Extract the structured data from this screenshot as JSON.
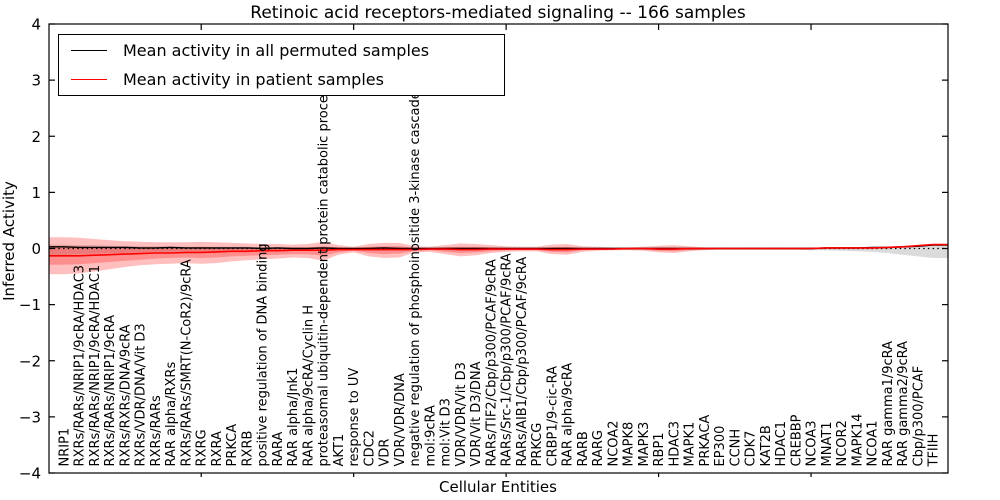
{
  "figure": {
    "title": "Retinoic acid receptors-mediated signaling -- 166 samples",
    "xlabel": "Cellular Entities",
    "ylabel": "Inferred Activity"
  },
  "legend": {
    "items": [
      {
        "label": "Mean activity in all permuted samples",
        "color": "#000000"
      },
      {
        "label": "Mean activity in patient samples",
        "color": "#ff0000"
      }
    ]
  },
  "chart_data": {
    "type": "line",
    "title": "Retinoic acid receptors-mediated signaling -- 166 samples",
    "xlabel": "Cellular Entities",
    "ylabel": "Inferred Activity",
    "ylim": [
      -4,
      4
    ],
    "yticks": [
      4,
      3,
      2,
      1,
      0,
      -1,
      -2,
      -3,
      -4
    ],
    "xtick_every": 10,
    "grid": false,
    "zero_line_style": "dotted",
    "legend_position": "upper left",
    "categories": [
      "NRIP1",
      "RXRs/RARs/NRIP1/9cRA/HDAC3",
      "RXRs/RARs/NRIP1/9cRA/HDAC1",
      "RXRs/RARs/NRIP1/9cRA",
      "RXRs/RXRs/DNA/9cRA",
      "RXRs/VDR/DNA/Vit D3",
      "RXRs/RARs",
      "RAR alpha/RXRs",
      "RXRs/RARs/SMRT(N-CoR2)/9cRA",
      "RXRG",
      "RXRA",
      "PRKCA",
      "RXRB",
      "positive regulation of DNA binding",
      "RARA",
      "RAR alpha/Jnk1",
      "RAR alpha/9cRA/Cyclin H",
      "proteasomal ubiquitin-dependent protein catabolic process",
      "AKT1",
      "response to UV",
      "CDC2",
      "VDR",
      "VDR/VDR/DNA",
      "negative regulation of phosphoinositide 3-kinase cascade",
      "mol:9cRA",
      "mol:Vit D3",
      "VDR/VDR/Vit D3",
      "VDR/Vit D3/DNA",
      "RARs/TIF2/Cbp/p300/PCAF/9cRA",
      "RARs/Src-1/Cbp/p300/PCAF/9cRA",
      "RARs/AIB1/Cbp/p300/PCAF/9cRA",
      "PRKCG",
      "CRBP1/9-cic-RA",
      "RAR alpha/9cRA",
      "RARB",
      "RARG",
      "NCOA2",
      "MAPK8",
      "MAPK3",
      "RBP1",
      "HDAC3",
      "MAPK1",
      "PRKACA",
      "EP300",
      "CCNH",
      "CDK7",
      "KAT2B",
      "HDAC1",
      "CREBBP",
      "NCOA3",
      "MNAT1",
      "NCOR2",
      "MAPK14",
      "NCOA1",
      "RAR gamma1/9cRA",
      "RAR gamma2/9cRA",
      "Cbp/p300/PCAF",
      "TFIIH"
    ],
    "series": [
      {
        "name": "Mean activity in all permuted samples",
        "color": "#000000",
        "values": [
          0.03,
          0.02,
          0.02,
          0.02,
          0.02,
          0.01,
          0.01,
          0.02,
          0.01,
          0.01,
          0.01,
          0.01,
          0.01,
          0.0,
          0.01,
          0.0,
          0.0,
          0.01,
          0.0,
          0.0,
          0.0,
          0.01,
          0.0,
          0.0,
          0.0,
          0.0,
          0.0,
          0.0,
          0.0,
          0.0,
          0.0,
          0.0,
          0.0,
          0.0,
          0.0,
          0.0,
          0.0,
          0.0,
          0.0,
          0.0,
          0.0,
          0.0,
          0.0,
          0.0,
          0.0,
          0.0,
          0.0,
          0.0,
          0.0,
          0.0,
          0.01,
          0.01,
          0.01,
          0.02,
          0.02,
          0.03,
          0.04,
          0.06
        ]
      },
      {
        "name": "Mean activity in patient samples",
        "color": "#ff0000",
        "values": [
          -0.13,
          -0.13,
          -0.12,
          -0.11,
          -0.1,
          -0.09,
          -0.08,
          -0.08,
          -0.07,
          -0.07,
          -0.06,
          -0.05,
          -0.05,
          -0.04,
          -0.04,
          -0.03,
          -0.03,
          -0.03,
          -0.02,
          -0.02,
          -0.02,
          -0.02,
          -0.02,
          -0.02,
          -0.01,
          -0.01,
          -0.02,
          -0.02,
          -0.01,
          -0.01,
          -0.01,
          -0.01,
          -0.02,
          -0.02,
          -0.01,
          -0.01,
          -0.01,
          0.0,
          0.0,
          -0.01,
          -0.01,
          0.0,
          0.0,
          0.0,
          0.0,
          0.0,
          0.0,
          0.0,
          0.0,
          0.0,
          0.01,
          0.01,
          0.01,
          0.01,
          0.02,
          0.03,
          0.05,
          0.07
        ]
      }
    ],
    "bands": [
      {
        "name": "permuted-std",
        "color": "#999999",
        "alpha": 0.35,
        "upper": [
          0.07,
          0.06,
          0.06,
          0.05,
          0.05,
          0.04,
          0.04,
          0.04,
          0.03,
          0.03,
          0.03,
          0.03,
          0.03,
          0.02,
          0.02,
          0.02,
          0.02,
          0.03,
          0.02,
          0.01,
          0.02,
          0.02,
          0.02,
          0.01,
          0.01,
          0.02,
          0.02,
          0.02,
          0.01,
          0.01,
          0.01,
          0.01,
          0.02,
          0.02,
          0.01,
          0.01,
          0.01,
          0.01,
          0.01,
          0.01,
          0.01,
          0.01,
          0.01,
          0.01,
          0.01,
          0.01,
          0.01,
          0.01,
          0.01,
          0.01,
          0.01,
          0.01,
          0.02,
          0.02,
          0.02,
          0.03,
          0.04,
          0.05
        ],
        "lower": [
          -0.11,
          -0.1,
          -0.09,
          -0.08,
          -0.08,
          -0.07,
          -0.06,
          -0.06,
          -0.05,
          -0.05,
          -0.05,
          -0.04,
          -0.04,
          -0.04,
          -0.04,
          -0.03,
          -0.03,
          -0.04,
          -0.03,
          -0.02,
          -0.03,
          -0.03,
          -0.03,
          -0.02,
          -0.02,
          -0.03,
          -0.03,
          -0.03,
          -0.02,
          -0.02,
          -0.02,
          -0.02,
          -0.03,
          -0.03,
          -0.02,
          -0.02,
          -0.02,
          -0.02,
          -0.02,
          -0.03,
          -0.03,
          -0.02,
          -0.02,
          -0.02,
          -0.02,
          -0.02,
          -0.02,
          -0.02,
          -0.02,
          -0.03,
          -0.03,
          -0.04,
          -0.05,
          -0.06,
          -0.08,
          -0.11,
          -0.14,
          -0.17
        ]
      },
      {
        "name": "patient-outer",
        "color": "#ff0000",
        "alpha": 0.25,
        "upper": [
          0.2,
          0.19,
          0.17,
          0.15,
          0.13,
          0.12,
          0.11,
          0.11,
          0.11,
          0.12,
          0.11,
          0.1,
          0.09,
          0.08,
          0.08,
          0.07,
          0.08,
          0.12,
          0.06,
          0.03,
          0.08,
          0.1,
          0.1,
          0.04,
          0.03,
          0.06,
          0.09,
          0.08,
          0.06,
          0.04,
          0.03,
          0.03,
          0.07,
          0.08,
          0.04,
          0.03,
          0.02,
          0.02,
          0.03,
          0.05,
          0.06,
          0.04,
          0.02,
          0.02,
          0.02,
          0.02,
          0.02,
          0.02,
          0.02,
          0.02,
          0.02,
          0.02,
          0.02,
          0.02,
          0.03,
          0.04,
          0.06,
          0.08
        ],
        "lower": [
          -0.46,
          -0.44,
          -0.41,
          -0.37,
          -0.33,
          -0.3,
          -0.28,
          -0.27,
          -0.26,
          -0.27,
          -0.26,
          -0.23,
          -0.21,
          -0.19,
          -0.18,
          -0.16,
          -0.17,
          -0.22,
          -0.11,
          -0.07,
          -0.14,
          -0.17,
          -0.16,
          -0.07,
          -0.06,
          -0.1,
          -0.14,
          -0.12,
          -0.08,
          -0.06,
          -0.05,
          -0.05,
          -0.1,
          -0.11,
          -0.06,
          -0.04,
          -0.03,
          -0.03,
          -0.04,
          -0.07,
          -0.08,
          -0.05,
          -0.03,
          -0.02,
          -0.02,
          -0.02,
          -0.02,
          -0.02,
          -0.02,
          -0.02,
          -0.01,
          -0.01,
          -0.01,
          -0.01,
          0.0,
          0.01,
          0.03,
          0.05
        ]
      },
      {
        "name": "patient-inner",
        "color": "#ff0000",
        "alpha": 0.25,
        "upper": [
          0.04,
          0.04,
          0.03,
          0.03,
          0.02,
          0.02,
          0.02,
          0.02,
          0.02,
          0.03,
          0.02,
          0.02,
          0.02,
          0.02,
          0.02,
          0.02,
          0.02,
          0.04,
          0.02,
          0.01,
          0.03,
          0.04,
          0.04,
          0.01,
          0.01,
          0.02,
          0.03,
          0.03,
          0.02,
          0.01,
          0.01,
          0.01,
          0.02,
          0.03,
          0.01,
          0.01,
          0.01,
          0.01,
          0.01,
          0.02,
          0.02,
          0.01,
          0.01,
          0.01,
          0.01,
          0.01,
          0.01,
          0.01,
          0.01,
          0.01,
          0.01,
          0.01,
          0.01,
          0.02,
          0.02,
          0.03,
          0.04,
          0.06
        ],
        "lower": [
          -0.29,
          -0.28,
          -0.26,
          -0.24,
          -0.22,
          -0.2,
          -0.18,
          -0.17,
          -0.16,
          -0.17,
          -0.16,
          -0.14,
          -0.13,
          -0.12,
          -0.11,
          -0.1,
          -0.1,
          -0.13,
          -0.07,
          -0.04,
          -0.08,
          -0.1,
          -0.09,
          -0.04,
          -0.03,
          -0.06,
          -0.08,
          -0.07,
          -0.05,
          -0.03,
          -0.03,
          -0.03,
          -0.06,
          -0.07,
          -0.03,
          -0.02,
          -0.02,
          -0.02,
          -0.02,
          -0.04,
          -0.05,
          -0.03,
          -0.02,
          -0.01,
          -0.01,
          -0.01,
          -0.01,
          -0.01,
          -0.01,
          -0.01,
          0.0,
          0.0,
          0.0,
          0.0,
          0.01,
          0.02,
          0.04,
          0.06
        ]
      }
    ]
  }
}
